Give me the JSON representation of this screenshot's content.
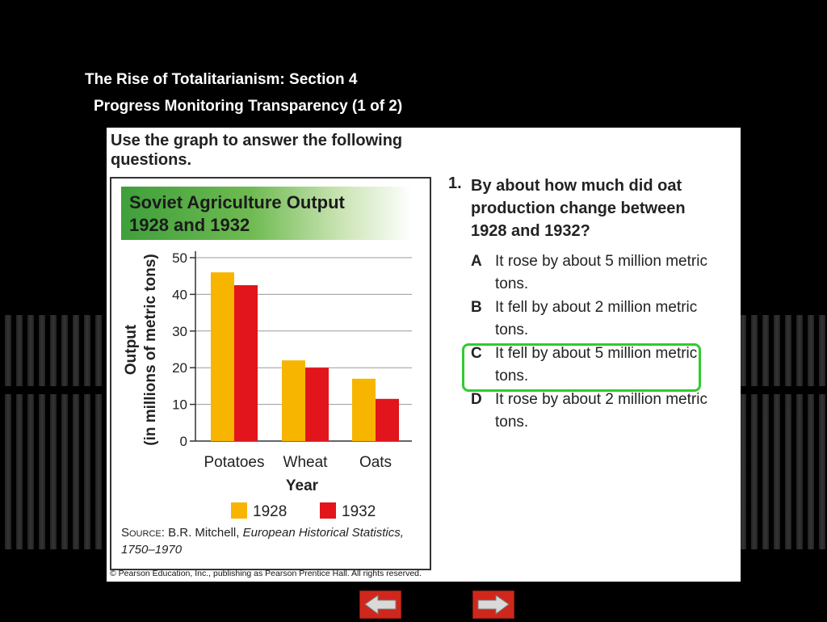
{
  "slide": {
    "title_line1": "The Rise of Totalitarianism: Section 4",
    "title_line2": "Progress Monitoring Transparency (1 of 2)"
  },
  "panel": {
    "instructions": "Use the graph to answer the following questions.",
    "copyright": "© Pearson Education, Inc., publishing as Pearson Prentice Hall. All rights reserved."
  },
  "source": {
    "label": "Source:",
    "author": "B.R. Mitchell,",
    "work": "European Historical Statistics, 1750–1970"
  },
  "question": {
    "number": "1.",
    "text": "By about how much did oat production change between 1928 and 1932?",
    "options": [
      {
        "letter": "A",
        "text": "It rose by about 5 million metric tons."
      },
      {
        "letter": "B",
        "text": "It fell by about 2 million metric tons."
      },
      {
        "letter": "C",
        "text": "It fell by about 5 million metric tons."
      },
      {
        "letter": "D",
        "text": "It rose by about 2 million metric tons."
      }
    ],
    "highlighted": "C",
    "highlight_color": "#2ecc2e"
  },
  "nav": {
    "back_icon": "left-arrow-icon",
    "next_icon": "right-arrow-icon"
  },
  "chart_data": {
    "type": "bar",
    "title": "Soviet Agriculture Output 1928 and 1932",
    "categories": [
      "Potatoes",
      "Wheat",
      "Oats"
    ],
    "series": [
      {
        "name": "1928",
        "values": [
          46,
          22,
          17
        ],
        "color": "#f7b500"
      },
      {
        "name": "1932",
        "values": [
          42.5,
          20,
          11.5
        ],
        "color": "#e2141c"
      }
    ],
    "xlabel": "Year",
    "ylabel_line1": "Output",
    "ylabel_line2": "(in millions of metric tons)",
    "ylim": [
      0,
      50
    ],
    "yticks": [
      0,
      10,
      20,
      30,
      40,
      50
    ],
    "grid": true,
    "legend_position": "bottom"
  }
}
